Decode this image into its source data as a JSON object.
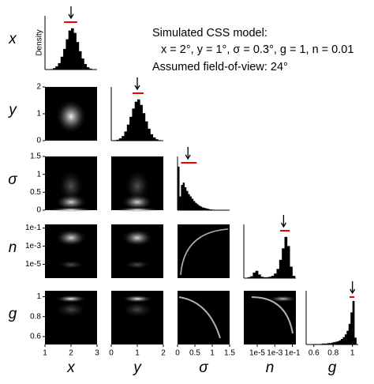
{
  "annotation": {
    "title": "Simulated CSS model:",
    "params": "x = 2°, y = 1°, σ = 0.3°, g = 1, n = 0.01",
    "fov": "Assumed field-of-view: 24°"
  },
  "chart_data": [
    {
      "type": "histogram",
      "label": "x",
      "ylabel": "Density",
      "xlim": [
        1,
        3
      ],
      "xticks": [
        1,
        2,
        3
      ],
      "ylim": [
        0,
        1
      ],
      "bins": [
        1.2,
        1.3,
        1.4,
        1.5,
        1.6,
        1.7,
        1.8,
        1.9,
        2.0,
        2.1,
        2.2,
        2.3,
        2.4,
        2.5,
        2.6,
        2.7,
        2.8
      ],
      "values": [
        0.01,
        0.03,
        0.07,
        0.14,
        0.28,
        0.45,
        0.66,
        0.85,
        0.9,
        0.8,
        0.6,
        0.4,
        0.24,
        0.12,
        0.05,
        0.02
      ],
      "marker": 2,
      "interval": [
        1.73,
        2.24
      ]
    },
    {
      "type": "histogram",
      "label": "y",
      "xlim": [
        0,
        2
      ],
      "xticks": [
        0,
        1,
        2
      ],
      "ylim": [
        0,
        1
      ],
      "bins": [
        0.1,
        0.2,
        0.3,
        0.4,
        0.5,
        0.6,
        0.7,
        0.8,
        0.9,
        1.0,
        1.1,
        1.2,
        1.3,
        1.4,
        1.5,
        1.6,
        1.7,
        1.8,
        1.9
      ],
      "values": [
        0.01,
        0.02,
        0.05,
        0.1,
        0.2,
        0.35,
        0.52,
        0.7,
        0.85,
        0.9,
        0.78,
        0.6,
        0.42,
        0.26,
        0.14,
        0.07,
        0.03,
        0.01
      ],
      "marker": 1,
      "interval": [
        0.82,
        1.24
      ]
    },
    {
      "type": "histogram",
      "label": "σ",
      "xlim": [
        0,
        1.5
      ],
      "xticks": [
        0,
        0.5,
        1,
        1.5
      ],
      "ylim": [
        0,
        1
      ],
      "bins": [
        0,
        0.05,
        0.1,
        0.15,
        0.2,
        0.25,
        0.3,
        0.35,
        0.4,
        0.45,
        0.5,
        0.55,
        0.6,
        0.65,
        0.7,
        0.75,
        0.8,
        0.85,
        0.9,
        0.95,
        1.0,
        1.05,
        1.1,
        1.15,
        1.2
      ],
      "values": [
        0.95,
        0.3,
        0.55,
        0.6,
        0.5,
        0.42,
        0.35,
        0.3,
        0.25,
        0.2,
        0.16,
        0.13,
        0.1,
        0.08,
        0.06,
        0.05,
        0.04,
        0.03,
        0.02,
        0.015,
        0.01,
        0.01,
        0.005,
        0.005
      ],
      "marker": 0.3,
      "interval": [
        0.1,
        0.55
      ]
    },
    {
      "type": "histogram",
      "label": "n",
      "log": true,
      "xlim": [
        3e-07,
        0.25
      ],
      "xticks": [
        {
          "value": 1e-05,
          "label": "1e-5"
        },
        {
          "value": 0.001,
          "label": "1e-3"
        },
        {
          "value": 0.1,
          "label": "1e-1"
        }
      ],
      "ylim": [
        0,
        1
      ],
      "bins": [
        3.98e-07,
        7.94e-07,
        1.58e-06,
        3.16e-06,
        6.31e-06,
        1.26e-05,
        2.51e-05,
        5.01e-05,
        0.0001,
        0.0002,
        0.000398,
        0.000794,
        0.00158,
        0.00316,
        0.00631,
        0.0126,
        0.0251,
        0.0501,
        0.1,
        0.2
      ],
      "values": [
        0,
        0.02,
        0.04,
        0.12,
        0.16,
        0.08,
        0.03,
        0.02,
        0.02,
        0.03,
        0.05,
        0.1,
        0.2,
        0.4,
        0.65,
        0.9,
        0.7,
        0.25,
        0.05
      ],
      "marker": 0.01,
      "interval": [
        0.004,
        0.05
      ]
    },
    {
      "type": "histogram",
      "label": "g",
      "xlim": [
        0.52,
        1.06
      ],
      "xticks": [
        0.6,
        0.8,
        1
      ],
      "ylim": [
        0,
        1
      ],
      "bins": [
        0.6,
        0.62,
        0.64,
        0.66,
        0.68,
        0.7,
        0.72,
        0.74,
        0.76,
        0.78,
        0.8,
        0.82,
        0.84,
        0.86,
        0.88,
        0.9,
        0.92,
        0.94,
        0.96,
        0.98,
        1.0,
        1.02,
        1.04
      ],
      "values": [
        0.01,
        0.01,
        0.01,
        0.01,
        0.02,
        0.02,
        0.02,
        0.03,
        0.03,
        0.04,
        0.05,
        0.06,
        0.07,
        0.09,
        0.12,
        0.16,
        0.22,
        0.3,
        0.45,
        0.7,
        0.95,
        0.15
      ],
      "marker": 1,
      "interval": [
        0.97,
        1.02
      ]
    }
  ]
}
